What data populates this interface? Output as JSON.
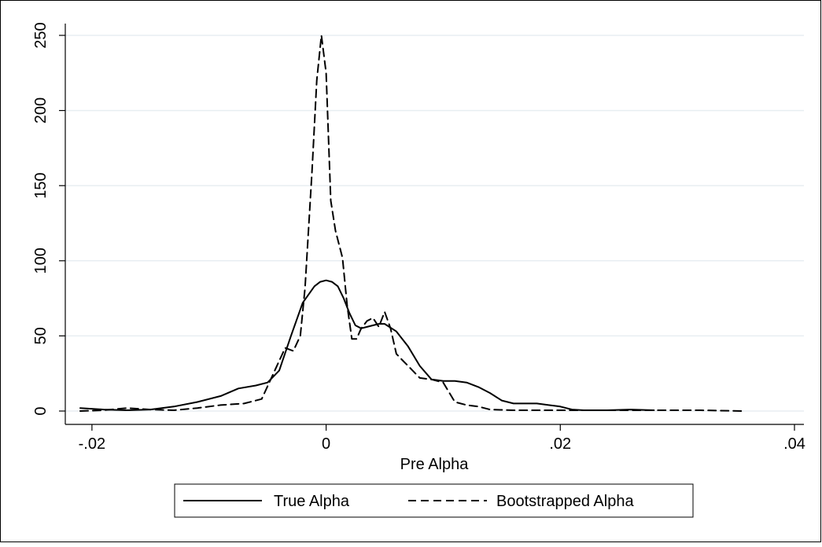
{
  "chart_data": {
    "type": "line",
    "title": "",
    "xlabel": "Pre Alpha",
    "ylabel": "",
    "xlim": [
      -0.021,
      0.04
    ],
    "ylim": [
      0,
      250
    ],
    "x_ticks": [
      -0.02,
      0,
      0.02,
      0.04
    ],
    "x_tick_labels": [
      "-.02",
      "0",
      ".02",
      ".04"
    ],
    "y_ticks": [
      0,
      50,
      100,
      150,
      200,
      250
    ],
    "y_tick_labels": [
      "0",
      "50",
      "100",
      "150",
      "200",
      "250"
    ],
    "grid": "horizontal",
    "legend_position": "bottom",
    "series": [
      {
        "name": "True Alpha",
        "style": "solid",
        "color": "#000000",
        "x": [
          -0.021,
          -0.019,
          -0.017,
          -0.015,
          -0.013,
          -0.011,
          -0.009,
          -0.0075,
          -0.006,
          -0.005,
          -0.004,
          -0.003,
          -0.002,
          -0.001,
          -0.0005,
          0,
          0.0005,
          0.001,
          0.0015,
          0.002,
          0.0025,
          0.003,
          0.0035,
          0.004,
          0.0045,
          0.005,
          0.006,
          0.007,
          0.008,
          0.009,
          0.01,
          0.011,
          0.012,
          0.013,
          0.014,
          0.015,
          0.016,
          0.017,
          0.018,
          0.019,
          0.02,
          0.021,
          0.022,
          0.024,
          0.026,
          0.028
        ],
        "y": [
          2,
          1,
          0.5,
          1,
          3,
          6,
          10,
          15,
          17,
          19,
          27,
          50,
          72,
          83,
          86,
          87,
          86,
          83,
          75,
          65,
          57,
          55,
          56,
          57,
          58,
          58,
          53,
          43,
          30,
          21,
          20,
          20,
          19,
          16,
          12,
          7,
          5,
          5,
          5,
          4,
          3,
          1,
          0.5,
          0.5,
          1,
          0.5
        ]
      },
      {
        "name": "Bootstrapped Alpha",
        "style": "dashed",
        "color": "#000000",
        "x": [
          -0.021,
          -0.019,
          -0.017,
          -0.015,
          -0.013,
          -0.011,
          -0.009,
          -0.007,
          -0.0055,
          -0.0045,
          -0.0035,
          -0.0028,
          -0.0022,
          -0.0018,
          -0.0012,
          -0.0008,
          -0.0004,
          0,
          0.0004,
          0.0008,
          0.0014,
          0.0018,
          0.0022,
          0.0026,
          0.003,
          0.0035,
          0.004,
          0.0045,
          0.005,
          0.0055,
          0.006,
          0.0065,
          0.007,
          0.008,
          0.009,
          0.01,
          0.011,
          0.012,
          0.013,
          0.014,
          0.016,
          0.018,
          0.02,
          0.022,
          0.024,
          0.026,
          0.028,
          0.03,
          0.032,
          0.0355
        ],
        "y": [
          0,
          0.5,
          2,
          1,
          0.5,
          2,
          4,
          5,
          8,
          25,
          42,
          40,
          50,
          82,
          160,
          220,
          250,
          225,
          140,
          120,
          102,
          70,
          48,
          48,
          55,
          60,
          62,
          56,
          66,
          55,
          38,
          34,
          30,
          22,
          21,
          19,
          6,
          4,
          3,
          1,
          0.5,
          0.5,
          0.5,
          0.5,
          0.5,
          0.5,
          0.5,
          0.5,
          0.5,
          0
        ]
      }
    ]
  }
}
